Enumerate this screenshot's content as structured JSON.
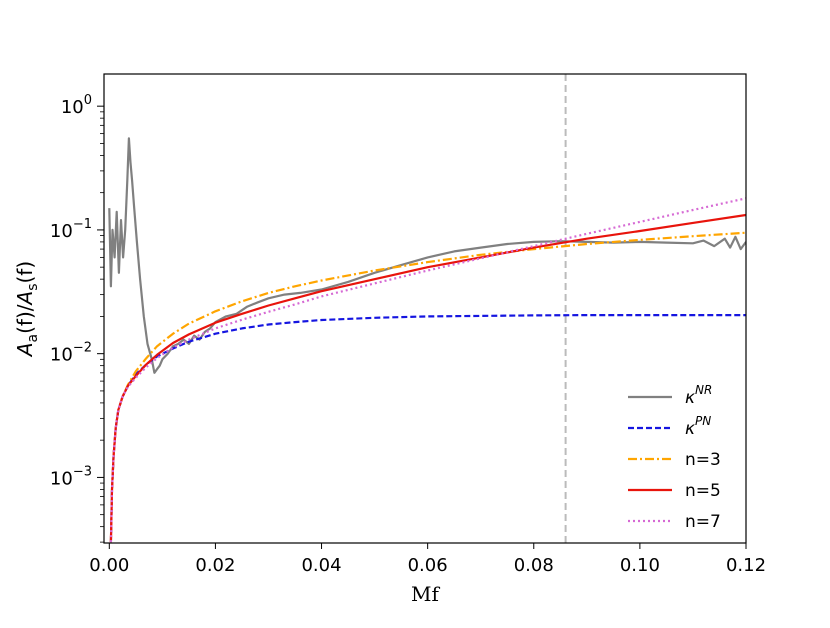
{
  "chart_data": {
    "type": "line",
    "title": "",
    "xlabel": "Mf",
    "ylabel": "A_a(f)/A_s(f)",
    "xlim": [
      -0.001,
      0.12
    ],
    "ylim_log10": [
      -3.53,
      0.26
    ],
    "yscale": "log",
    "xticks": [
      0.0,
      0.02,
      0.04,
      0.06,
      0.08,
      0.1,
      0.12
    ],
    "xtick_labels": [
      "0.00",
      "0.02",
      "0.04",
      "0.06",
      "0.08",
      "0.10",
      "0.12"
    ],
    "yticks_exp": [
      0,
      -1,
      -2,
      -3
    ],
    "ytick_base": "10",
    "ytick_exps": [
      "0",
      "−1",
      "−2",
      "−3"
    ],
    "vline": {
      "x": 0.086,
      "color": "#bbbbbb"
    },
    "grid": false,
    "legend_position": "lower-right",
    "series": [
      {
        "name": "κ^NR",
        "label_base": "κ",
        "label_sup": "NR",
        "color": "#808080",
        "dash": "solid",
        "x": [
          0.0,
          0.0003,
          0.0006,
          0.001,
          0.0014,
          0.0018,
          0.0022,
          0.0026,
          0.003,
          0.0034,
          0.0037,
          0.004,
          0.0043,
          0.0047,
          0.0052,
          0.0058,
          0.0065,
          0.0072,
          0.008,
          0.0085,
          0.009,
          0.0095,
          0.01,
          0.011,
          0.012,
          0.013,
          0.014,
          0.015,
          0.016,
          0.017,
          0.018,
          0.019,
          0.02,
          0.022,
          0.024,
          0.026,
          0.028,
          0.03,
          0.033,
          0.036,
          0.04,
          0.045,
          0.05,
          0.055,
          0.06,
          0.065,
          0.07,
          0.075,
          0.08,
          0.085,
          0.09,
          0.095,
          0.1,
          0.105,
          0.11,
          0.112,
          0.114,
          0.116,
          0.117,
          0.118,
          0.119,
          0.12
        ],
        "y": [
          0.15,
          0.035,
          0.1,
          0.06,
          0.14,
          0.045,
          0.12,
          0.06,
          0.1,
          0.25,
          0.55,
          0.35,
          0.25,
          0.15,
          0.08,
          0.04,
          0.02,
          0.012,
          0.009,
          0.007,
          0.0075,
          0.008,
          0.009,
          0.01,
          0.0115,
          0.012,
          0.013,
          0.012,
          0.014,
          0.013,
          0.015,
          0.016,
          0.018,
          0.02,
          0.021,
          0.024,
          0.026,
          0.028,
          0.03,
          0.031,
          0.033,
          0.038,
          0.045,
          0.052,
          0.06,
          0.067,
          0.072,
          0.077,
          0.08,
          0.081,
          0.08,
          0.079,
          0.08,
          0.079,
          0.078,
          0.082,
          0.074,
          0.085,
          0.072,
          0.088,
          0.07,
          0.08
        ]
      },
      {
        "name": "κ^PN",
        "label_base": "κ",
        "label_sup": "PN",
        "color": "#1515e0",
        "dash": "dashed",
        "x": [
          0.0003,
          0.0005,
          0.0008,
          0.0012,
          0.0017,
          0.0025,
          0.0035,
          0.005,
          0.007,
          0.009,
          0.012,
          0.015,
          0.02,
          0.025,
          0.03,
          0.035,
          0.04,
          0.05,
          0.06,
          0.07,
          0.08,
          0.09,
          0.1,
          0.11,
          0.12
        ],
        "y": [
          0.0003,
          0.0008,
          0.0015,
          0.0025,
          0.0035,
          0.0045,
          0.0055,
          0.0068,
          0.0082,
          0.0095,
          0.011,
          0.0125,
          0.0145,
          0.016,
          0.0172,
          0.018,
          0.0187,
          0.0195,
          0.02,
          0.0202,
          0.0204,
          0.0205,
          0.0205,
          0.0205,
          0.0205
        ]
      },
      {
        "name": "n=3",
        "label_text": "n=3",
        "color": "#ffa500",
        "dash": "dashdot",
        "x": [
          0.0003,
          0.0005,
          0.0008,
          0.0012,
          0.0017,
          0.0025,
          0.0035,
          0.005,
          0.007,
          0.009,
          0.012,
          0.015,
          0.02,
          0.025,
          0.03,
          0.035,
          0.04,
          0.05,
          0.06,
          0.07,
          0.08,
          0.09,
          0.1,
          0.11,
          0.12
        ],
        "y": [
          0.0003,
          0.0008,
          0.0015,
          0.0025,
          0.0035,
          0.0045,
          0.0056,
          0.0072,
          0.0092,
          0.0115,
          0.0145,
          0.0175,
          0.022,
          0.0265,
          0.031,
          0.035,
          0.039,
          0.047,
          0.055,
          0.063,
          0.07,
          0.077,
          0.083,
          0.089,
          0.095
        ]
      },
      {
        "name": "n=5",
        "label_text": "n=5",
        "color": "#e8140c",
        "dash": "solid",
        "x": [
          0.0003,
          0.0005,
          0.0008,
          0.0012,
          0.0017,
          0.0025,
          0.0035,
          0.005,
          0.007,
          0.009,
          0.012,
          0.015,
          0.02,
          0.025,
          0.03,
          0.035,
          0.04,
          0.05,
          0.06,
          0.07,
          0.08,
          0.09,
          0.1,
          0.11,
          0.12
        ],
        "y": [
          0.0003,
          0.0008,
          0.0015,
          0.0025,
          0.0035,
          0.0045,
          0.0055,
          0.0066,
          0.0082,
          0.0098,
          0.0122,
          0.0143,
          0.0178,
          0.021,
          0.0245,
          0.028,
          0.032,
          0.04,
          0.05,
          0.06,
          0.072,
          0.085,
          0.098,
          0.114,
          0.132
        ]
      },
      {
        "name": "n=7",
        "label_text": "n=7",
        "color": "#d66ad4",
        "dash": "dotted",
        "x": [
          0.0003,
          0.0005,
          0.0008,
          0.0012,
          0.0017,
          0.0025,
          0.0035,
          0.005,
          0.007,
          0.009,
          0.012,
          0.015,
          0.02,
          0.025,
          0.03,
          0.035,
          0.04,
          0.05,
          0.06,
          0.07,
          0.08,
          0.09,
          0.1,
          0.11,
          0.12
        ],
        "y": [
          0.0003,
          0.0008,
          0.0015,
          0.0025,
          0.0035,
          0.0045,
          0.0054,
          0.0064,
          0.0078,
          0.0092,
          0.0112,
          0.013,
          0.016,
          0.0188,
          0.0218,
          0.025,
          0.029,
          0.037,
          0.047,
          0.059,
          0.074,
          0.093,
          0.116,
          0.145,
          0.18
        ]
      }
    ]
  }
}
